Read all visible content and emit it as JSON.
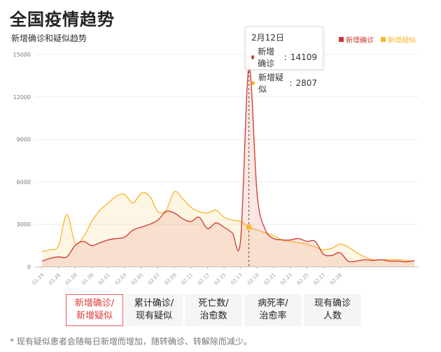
{
  "title": "全国疫情趋势",
  "subtitle": "新增确诊和疑似趋势",
  "legend": [
    {
      "name": "新增确诊",
      "color": "#d0362f"
    },
    {
      "name": "新增疑似",
      "color": "#f9b52c"
    }
  ],
  "tooltip": {
    "date": "2月12日",
    "rows": [
      {
        "name": "新增确诊",
        "value": "14109",
        "color": "#d0362f"
      },
      {
        "name": "新增疑似",
        "value": "2807",
        "color": "#f9b52c"
      }
    ]
  },
  "tabs": [
    {
      "line1": "新增确诊/",
      "line2": "新增疑似",
      "active": true
    },
    {
      "line1": "累计确诊/",
      "line2": "现有疑似",
      "active": false
    },
    {
      "line1": "死亡数/",
      "line2": "治愈数",
      "active": false
    },
    {
      "line1": "病死率/",
      "line2": "治愈率",
      "active": false
    },
    {
      "line1": "现有确诊",
      "line2": "人数",
      "active": false
    }
  ],
  "footnote": "* 现有疑似患者会随每日新增而增加，随转确诊、转解除而减少。",
  "chart_data": {
    "type": "area",
    "ylim": [
      0,
      15000
    ],
    "yticks": [
      0,
      3000,
      6000,
      9000,
      12000,
      15000
    ],
    "xticklabels": [
      "01.24",
      "01.26",
      "01.28",
      "01.30",
      "02.01",
      "02.03",
      "02.05",
      "02.07",
      "02.09",
      "02.11",
      "02.13",
      "02.15",
      "02.17",
      "02.19",
      "02.21",
      "02.23",
      "02.25",
      "02.27",
      "02.28"
    ],
    "series": [
      {
        "name": "新增确诊",
        "color": "#d0362f",
        "values": [
          400,
          600,
          700,
          700,
          1500,
          1800,
          1500,
          1700,
          1900,
          2000,
          2100,
          2600,
          2800,
          3000,
          3300,
          3900,
          3800,
          3400,
          3200,
          3500,
          2700,
          3100,
          2800,
          2400,
          1900,
          14109,
          5100,
          2600,
          2000,
          1900,
          1900,
          2000,
          1800,
          1800,
          900,
          800,
          1000,
          400,
          400,
          500,
          450,
          500,
          400,
          400,
          350,
          430
        ]
      },
      {
        "name": "新增疑似",
        "color": "#f9b52c",
        "values": [
          1100,
          1200,
          1500,
          3700,
          1700,
          2100,
          3200,
          4000,
          4500,
          5000,
          5100,
          4500,
          5200,
          5000,
          3900,
          4000,
          5300,
          4800,
          4200,
          3900,
          3800,
          4000,
          3500,
          3300,
          3200,
          2807,
          2600,
          2400,
          2200,
          1900,
          1800,
          1700,
          1600,
          1400,
          1200,
          1300,
          1600,
          1400,
          1000,
          700,
          500,
          500,
          500,
          500,
          450,
          400
        ]
      }
    ],
    "highlight_index": 25
  }
}
